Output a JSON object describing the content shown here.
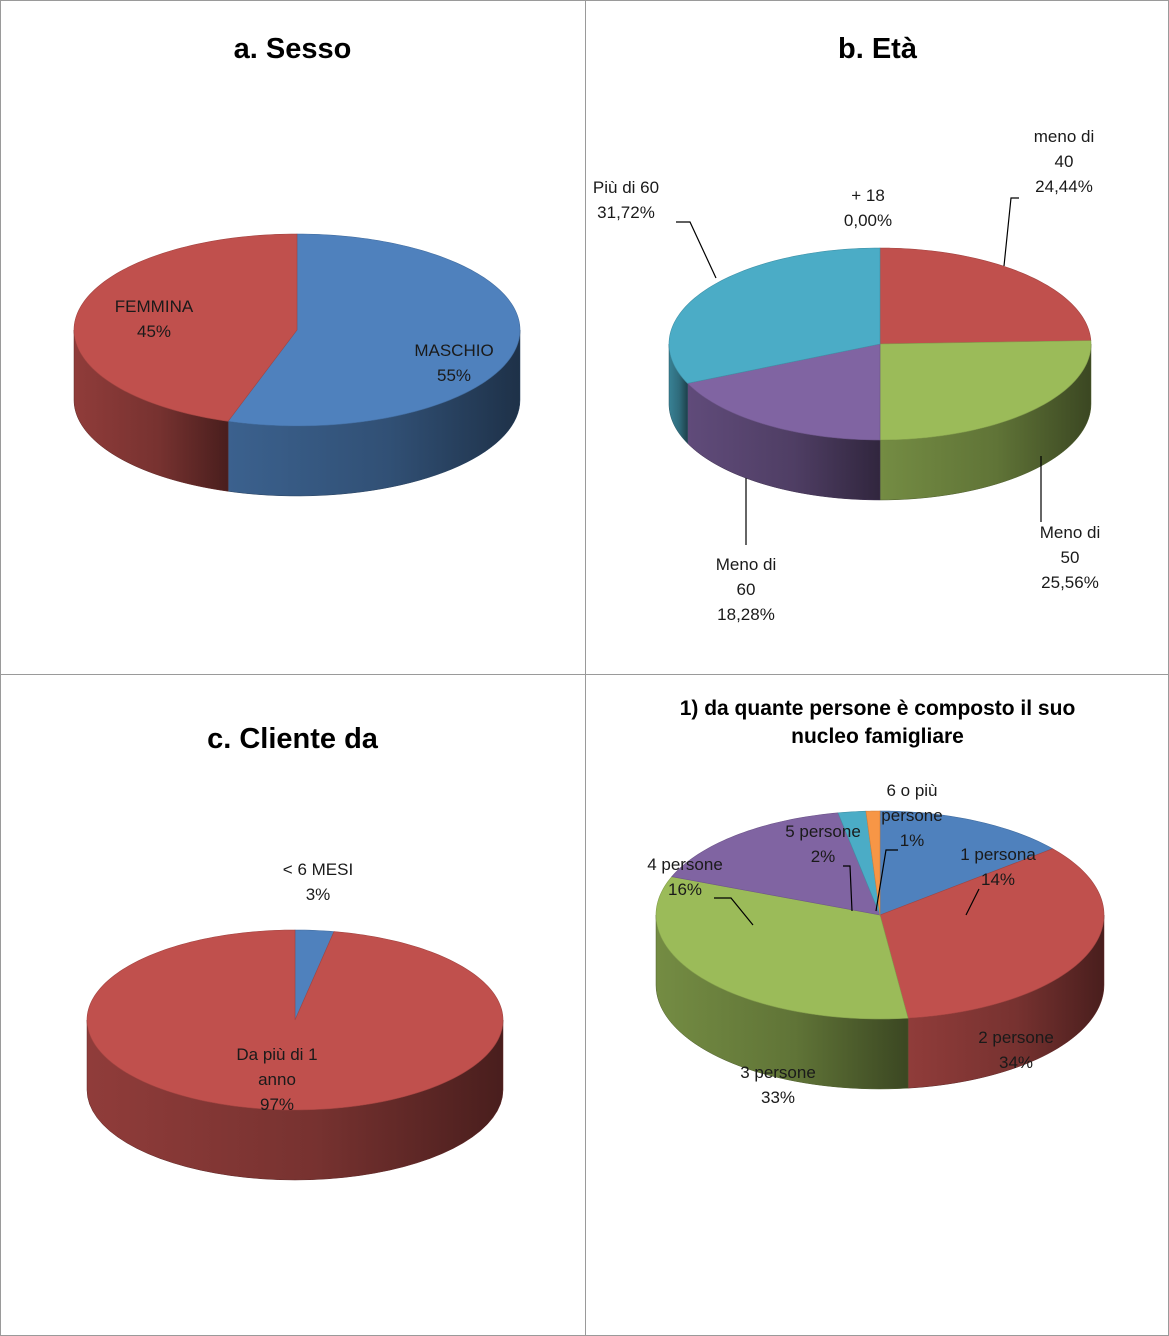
{
  "chart_data": [
    {
      "type": "pie",
      "title": "a. Sesso",
      "slices": [
        {
          "name": "MASCHIO",
          "value": 55,
          "label_lines": [
            "MASCHIO",
            "55%"
          ],
          "color": "#4F81BD"
        },
        {
          "name": "FEMMINA",
          "value": 45,
          "label_lines": [
            "FEMMINA",
            "45%"
          ],
          "color": "#C0504D"
        }
      ]
    },
    {
      "type": "pie",
      "title": "b. Età",
      "slices": [
        {
          "name": "+ 18",
          "value": 0.0,
          "label_lines": [
            "+ 18",
            "0,00%"
          ],
          "color": "#4F81BD"
        },
        {
          "name": "meno di 40",
          "value": 24.44,
          "label_lines": [
            "meno di",
            "40",
            "24,44%"
          ],
          "color": "#C0504D"
        },
        {
          "name": "Meno di 50",
          "value": 25.56,
          "label_lines": [
            "Meno di",
            "50",
            "25,56%"
          ],
          "color": "#9BBB59"
        },
        {
          "name": "Meno di 60",
          "value": 18.28,
          "label_lines": [
            "Meno di",
            "60",
            "18,28%"
          ],
          "color": "#8064A2"
        },
        {
          "name": "Più di 60",
          "value": 31.72,
          "label_lines": [
            "Più di 60",
            "31,72%"
          ],
          "color": "#4BACC6"
        }
      ]
    },
    {
      "type": "pie",
      "title": "c. Cliente da",
      "slices": [
        {
          "name": "< 6 MESI",
          "value": 3,
          "label_lines": [
            "< 6 MESI",
            "3%"
          ],
          "color": "#4F81BD"
        },
        {
          "name": "Da più di 1 anno",
          "value": 97,
          "label_lines": [
            "Da più di 1",
            "anno",
            "97%"
          ],
          "color": "#C0504D"
        }
      ]
    },
    {
      "type": "pie",
      "title": "1) da quante persone è composto il suo nucleo famigliare",
      "title_lines": [
        "1) da quante persone è composto il suo",
        "nucleo famigliare"
      ],
      "slices": [
        {
          "name": "1 persona",
          "value": 14,
          "label_lines": [
            "1 persona",
            "14%"
          ],
          "color": "#4F81BD"
        },
        {
          "name": "2 persone",
          "value": 34,
          "label_lines": [
            "2 persone",
            "34%"
          ],
          "color": "#C0504D"
        },
        {
          "name": "3 persone",
          "value": 33,
          "label_lines": [
            "3 persone",
            "33%"
          ],
          "color": "#9BBB59"
        },
        {
          "name": "4 persone",
          "value": 16,
          "label_lines": [
            "4 persone",
            "16%"
          ],
          "color": "#8064A2"
        },
        {
          "name": "5 persone",
          "value": 2,
          "label_lines": [
            "5 persone",
            "2%"
          ],
          "color": "#4BACC6"
        },
        {
          "name": "6 o più persone",
          "value": 1,
          "label_lines": [
            "6 o più",
            "persone",
            "1%"
          ],
          "color": "#F79646"
        }
      ]
    }
  ]
}
